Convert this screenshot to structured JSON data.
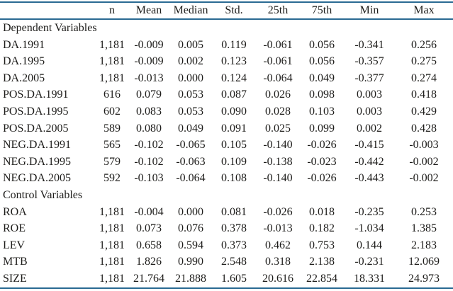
{
  "colors": {
    "rule": "#2a6a93",
    "text": "#1d1c1a",
    "background": "#ffffff"
  },
  "table": {
    "columns": [
      "",
      "n",
      "Mean",
      "Median",
      "Std.",
      "25th",
      "75th",
      "Min",
      "Max"
    ],
    "sections": [
      {
        "title": "Dependent Variables",
        "rows": [
          {
            "label": "DA.1991",
            "values": [
              "1,181",
              "-0.009",
              "0.005",
              "0.119",
              "-0.061",
              "0.056",
              "-0.341",
              "0.256"
            ]
          },
          {
            "label": "DA.1995",
            "values": [
              "1,181",
              "-0.009",
              "0.002",
              "0.123",
              "-0.061",
              "0.056",
              "-0.357",
              "0.275"
            ]
          },
          {
            "label": "DA.2005",
            "values": [
              "1,181",
              "-0.013",
              "0.000",
              "0.124",
              "-0.064",
              "0.049",
              "-0.377",
              "0.274"
            ]
          },
          {
            "label": "POS.DA.1991",
            "values": [
              "616",
              "0.079",
              "0.053",
              "0.087",
              "0.026",
              "0.098",
              "0.003",
              "0.418"
            ]
          },
          {
            "label": "POS.DA.1995",
            "values": [
              "602",
              "0.083",
              "0.053",
              "0.090",
              "0.028",
              "0.103",
              "0.003",
              "0.429"
            ]
          },
          {
            "label": "POS.DA.2005",
            "values": [
              "589",
              "0.080",
              "0.049",
              "0.091",
              "0.025",
              "0.099",
              "0.002",
              "0.428"
            ]
          },
          {
            "label": "NEG.DA.1991",
            "values": [
              "565",
              "-0.102",
              "-0.065",
              "0.105",
              "-0.140",
              "-0.026",
              "-0.415",
              "-0.003"
            ]
          },
          {
            "label": "NEG.DA.1995",
            "values": [
              "579",
              "-0.102",
              "-0.063",
              "0.109",
              "-0.138",
              "-0.023",
              "-0.442",
              "-0.002"
            ]
          },
          {
            "label": "NEG.DA.2005",
            "values": [
              "592",
              "-0.103",
              "-0.064",
              "0.108",
              "-0.140",
              "-0.026",
              "-0.443",
              "-0.002"
            ]
          }
        ]
      },
      {
        "title": "Control Variables",
        "rows": [
          {
            "label": "ROA",
            "values": [
              "1,181",
              "-0.004",
              "0.000",
              "0.081",
              "-0.026",
              "0.018",
              "-0.235",
              "0.253"
            ]
          },
          {
            "label": "ROE",
            "values": [
              "1,181",
              "0.073",
              "0.076",
              "0.378",
              "-0.013",
              "0.182",
              "-1.034",
              "1.385"
            ]
          },
          {
            "label": "LEV",
            "values": [
              "1,181",
              "0.658",
              "0.594",
              "0.373",
              "0.462",
              "0.753",
              "0.144",
              "2.183"
            ]
          },
          {
            "label": "MTB",
            "values": [
              "1,181",
              "1.826",
              "0.990",
              "2.548",
              "0.318",
              "2.138",
              "-0.231",
              "12.069"
            ]
          },
          {
            "label": "SIZE",
            "values": [
              "1,181",
              "21.764",
              "21.888",
              "1.605",
              "20.616",
              "22.854",
              "18.331",
              "24.973"
            ]
          }
        ]
      }
    ]
  }
}
